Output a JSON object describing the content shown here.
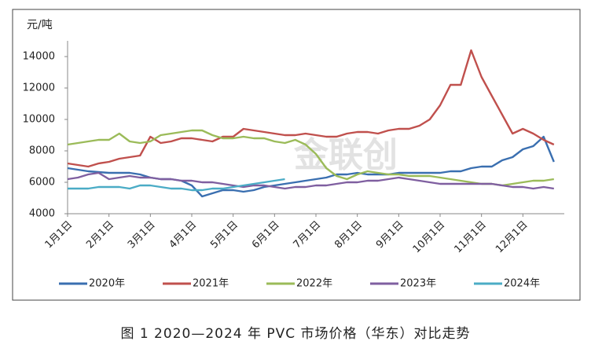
{
  "chart_data": {
    "type": "line",
    "y_label": "元/吨",
    "caption": "图 1  2020—2024 年 PVC 市场价格（华东）对比走势",
    "watermark": "金联创",
    "categories": [
      "1月1日",
      null,
      null,
      null,
      "2月1日",
      null,
      null,
      null,
      "3月1日",
      null,
      null,
      null,
      "4月1日",
      null,
      null,
      null,
      "5月1日",
      null,
      null,
      null,
      "6月1日",
      null,
      null,
      null,
      "7月1日",
      null,
      null,
      null,
      "8月1日",
      null,
      null,
      null,
      "9月1日",
      null,
      null,
      null,
      "10月1日",
      null,
      null,
      null,
      "11月1日",
      null,
      null,
      null,
      "12月1日",
      null,
      null,
      null
    ],
    "ylim": [
      4000,
      15000
    ],
    "yticks": [
      4000,
      6000,
      8000,
      10000,
      12000,
      14000
    ],
    "grid": false,
    "legend": "bottom",
    "series": [
      {
        "name": "2020年",
        "color": "#3a6fb0",
        "values": [
          6900,
          6800,
          6700,
          6650,
          6600,
          6600,
          6600,
          6500,
          6300,
          6200,
          6200,
          6100,
          5800,
          5100,
          5300,
          5500,
          5500,
          5400,
          5500,
          5700,
          5800,
          5900,
          6000,
          6100,
          6200,
          6300,
          6500,
          6500,
          6600,
          6500,
          6500,
          6500,
          6600,
          6600,
          6600,
          6600,
          6600,
          6700,
          6700,
          6900,
          7000,
          7000,
          7400,
          7600,
          8100,
          8300,
          8900,
          7300
        ]
      },
      {
        "name": "2021年",
        "color": "#c0504d",
        "values": [
          7200,
          7100,
          7000,
          7200,
          7300,
          7500,
          7600,
          7700,
          8900,
          8500,
          8600,
          8800,
          8800,
          8700,
          8600,
          8900,
          8900,
          9400,
          9300,
          9200,
          9100,
          9000,
          9000,
          9100,
          9000,
          8900,
          8900,
          9100,
          9200,
          9200,
          9100,
          9300,
          9400,
          9400,
          9600,
          10000,
          10900,
          12200,
          12200,
          14400,
          12700,
          11500,
          10300,
          9100,
          9400,
          9100,
          8700,
          8400
        ]
      },
      {
        "name": "2022年",
        "color": "#9bbb59",
        "values": [
          8400,
          8500,
          8600,
          8700,
          8700,
          9100,
          8600,
          8500,
          8600,
          9000,
          9100,
          9200,
          9300,
          9300,
          9000,
          8800,
          8800,
          8900,
          8800,
          8800,
          8600,
          8500,
          8700,
          8400,
          7800,
          6900,
          6400,
          6200,
          6500,
          6700,
          6600,
          6500,
          6500,
          6400,
          6400,
          6400,
          6300,
          6200,
          6100,
          6000,
          5900,
          5900,
          5800,
          5900,
          6000,
          6100,
          6100,
          6200
        ]
      },
      {
        "name": "2023年",
        "color": "#7f5fa0",
        "values": [
          6200,
          6300,
          6500,
          6600,
          6200,
          6300,
          6400,
          6300,
          6300,
          6200,
          6200,
          6100,
          6100,
          6000,
          6000,
          5900,
          5800,
          5700,
          5800,
          5800,
          5700,
          5600,
          5700,
          5700,
          5800,
          5800,
          5900,
          6000,
          6000,
          6100,
          6100,
          6200,
          6300,
          6200,
          6100,
          6000,
          5900,
          5900,
          5900,
          5900,
          5900,
          5900,
          5800,
          5700,
          5700,
          5600,
          5700,
          5600
        ]
      },
      {
        "name": "2024年",
        "color": "#4bacc6",
        "values": [
          5600,
          5600,
          5600,
          5700,
          5700,
          5700,
          5600,
          5800,
          5800,
          5700,
          5600,
          5600,
          5500,
          5500,
          5600,
          5600,
          5700,
          5800,
          5900,
          6000,
          6100,
          6200,
          null,
          null,
          null,
          null,
          null,
          null,
          null,
          null,
          null,
          null,
          null,
          null,
          null,
          null,
          null,
          null,
          null,
          null,
          null,
          null,
          null,
          null,
          null,
          null,
          null,
          null
        ]
      }
    ]
  }
}
